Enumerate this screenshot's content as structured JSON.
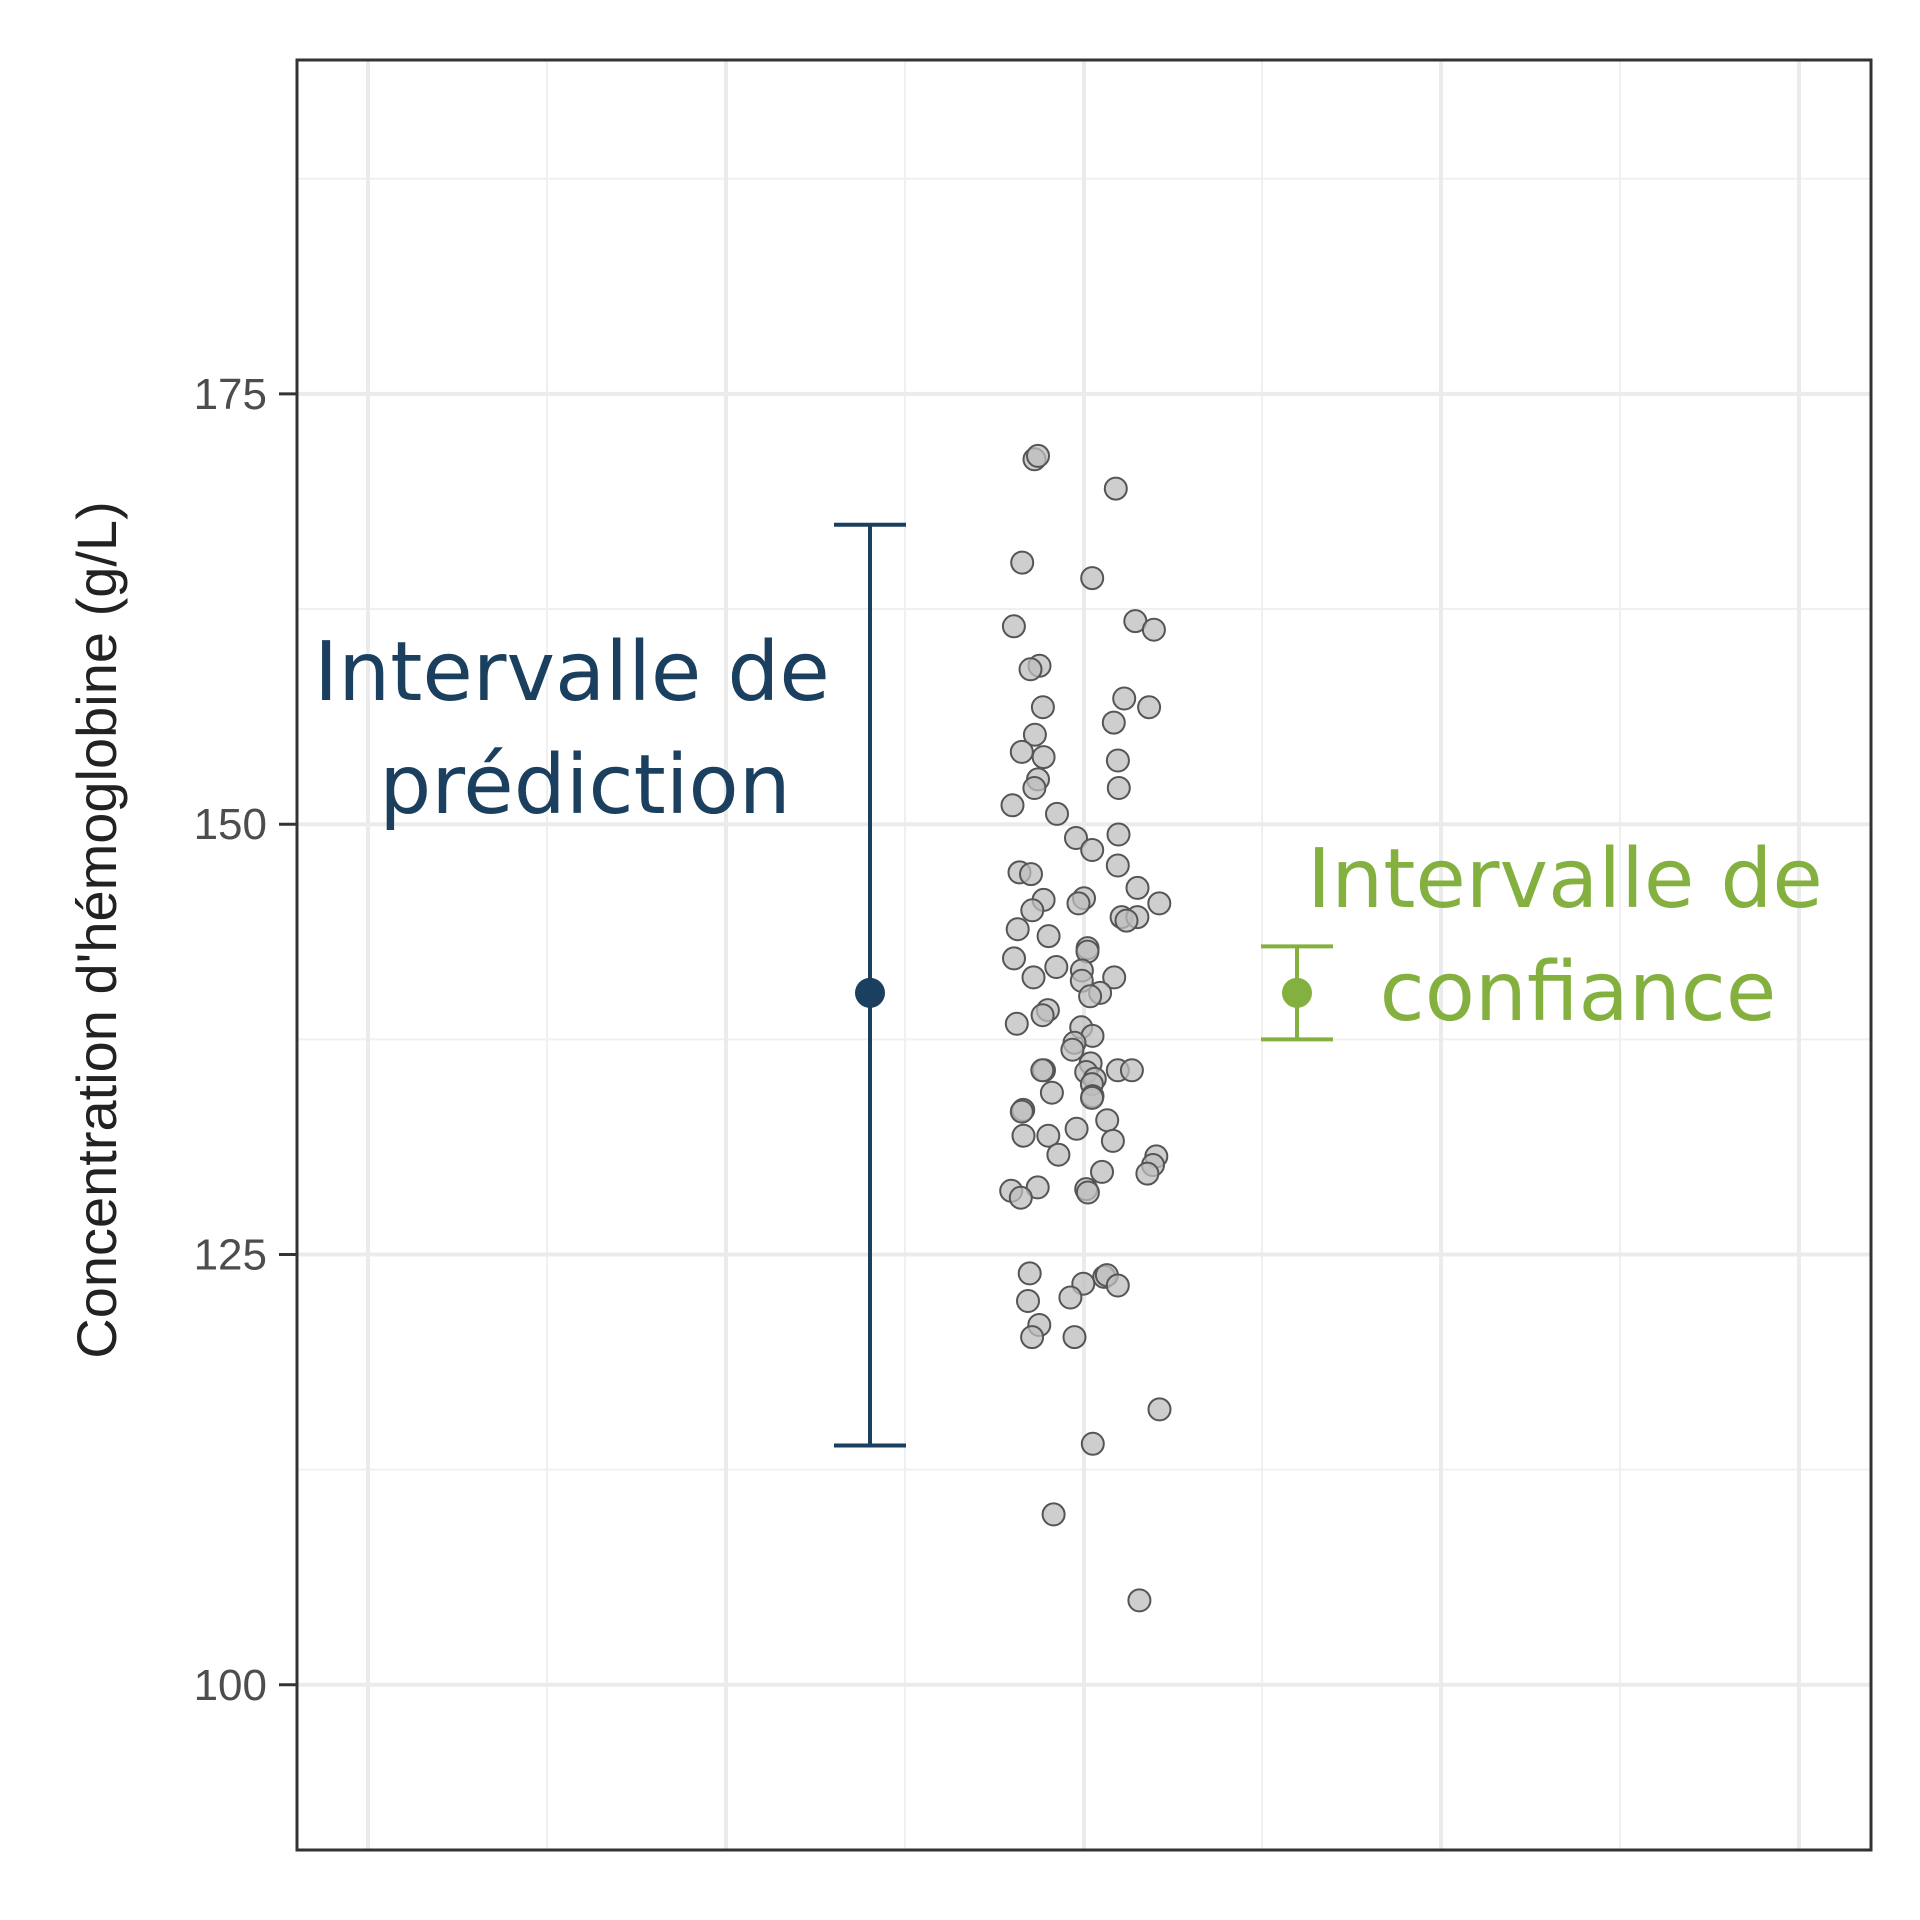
{
  "chart_data": {
    "type": "scatter",
    "ylabel": "Concentration d'hémoglobine (g/L)",
    "ylim": [
      90.4,
      194.4
    ],
    "yticks": [
      100,
      125,
      150,
      175
    ],
    "grid": true,
    "point_color": "#bdbdbd",
    "point_stroke": "#555555",
    "points": [
      {
        "group": "left",
        "y": 171.2
      },
      {
        "group": "left",
        "y": 171.4
      },
      {
        "group": "right",
        "y": 169.5
      },
      {
        "group": "left",
        "y": 165.2
      },
      {
        "group": "mid",
        "y": 164.3
      },
      {
        "group": "right",
        "y": 161.8
      },
      {
        "group": "left",
        "y": 161.5
      },
      {
        "group": "right",
        "y": 161.3
      },
      {
        "group": "left",
        "y": 159.2
      },
      {
        "group": "left",
        "y": 159.0
      },
      {
        "group": "right",
        "y": 157.3
      },
      {
        "group": "right",
        "y": 156.8
      },
      {
        "group": "left",
        "y": 156.8
      },
      {
        "group": "right",
        "y": 155.9
      },
      {
        "group": "left",
        "y": 155.2
      },
      {
        "group": "left",
        "y": 154.2
      },
      {
        "group": "left",
        "y": 153.9
      },
      {
        "group": "right",
        "y": 153.7
      },
      {
        "group": "left",
        "y": 152.6
      },
      {
        "group": "left",
        "y": 152.1
      },
      {
        "group": "right",
        "y": 152.1
      },
      {
        "group": "left",
        "y": 151.1
      },
      {
        "group": "left",
        "y": 150.6
      },
      {
        "group": "mid",
        "y": 149.4
      },
      {
        "group": "mid",
        "y": 149.2
      },
      {
        "group": "mid",
        "y": 148.5
      },
      {
        "group": "mid",
        "y": 147.6
      },
      {
        "group": "left",
        "y": 147.2
      },
      {
        "group": "left",
        "y": 147.1
      },
      {
        "group": "right",
        "y": 146.3
      },
      {
        "group": "left",
        "y": 145.6
      },
      {
        "group": "mid",
        "y": 145.7
      },
      {
        "group": "mid",
        "y": 145.4
      },
      {
        "group": "right",
        "y": 145.4
      },
      {
        "group": "left",
        "y": 145.0
      },
      {
        "group": "right",
        "y": 144.6
      },
      {
        "group": "right",
        "y": 144.6
      },
      {
        "group": "right",
        "y": 144.4
      },
      {
        "group": "left",
        "y": 143.9
      },
      {
        "group": "left",
        "y": 143.5
      },
      {
        "group": "mid",
        "y": 142.8
      },
      {
        "group": "mid",
        "y": 142.6
      },
      {
        "group": "left",
        "y": 142.2
      },
      {
        "group": "left",
        "y": 141.7
      },
      {
        "group": "mid",
        "y": 141.5
      },
      {
        "group": "mid",
        "y": 141.1
      },
      {
        "group": "left",
        "y": 141.1
      },
      {
        "group": "mid",
        "y": 140.9
      },
      {
        "group": "mid",
        "y": 140.2
      },
      {
        "group": "mid",
        "y": 140.0
      },
      {
        "group": "left",
        "y": 139.2
      },
      {
        "group": "left",
        "y": 138.9
      },
      {
        "group": "left",
        "y": 138.4
      },
      {
        "group": "mid",
        "y": 138.2
      },
      {
        "group": "mid",
        "y": 137.7
      },
      {
        "group": "mid",
        "y": 137.3
      },
      {
        "group": "mid",
        "y": 136.9
      },
      {
        "group": "mid",
        "y": 136.1
      },
      {
        "group": "left",
        "y": 135.7
      },
      {
        "group": "left",
        "y": 135.7
      },
      {
        "group": "mid",
        "y": 135.7
      },
      {
        "group": "mid",
        "y": 135.6
      },
      {
        "group": "right",
        "y": 135.7
      },
      {
        "group": "mid",
        "y": 135.2
      },
      {
        "group": "mid",
        "y": 134.9
      },
      {
        "group": "left",
        "y": 134.4
      },
      {
        "group": "mid",
        "y": 134.2
      },
      {
        "group": "mid",
        "y": 134.1
      },
      {
        "group": "left",
        "y": 133.4
      },
      {
        "group": "left",
        "y": 133.3
      },
      {
        "group": "mid",
        "y": 132.8
      },
      {
        "group": "mid",
        "y": 132.3
      },
      {
        "group": "left",
        "y": 131.9
      },
      {
        "group": "left",
        "y": 131.9
      },
      {
        "group": "mid",
        "y": 131.6
      },
      {
        "group": "left",
        "y": 130.8
      },
      {
        "group": "right",
        "y": 130.7
      },
      {
        "group": "right",
        "y": 130.2
      },
      {
        "group": "right",
        "y": 129.7
      },
      {
        "group": "mid",
        "y": 129.8
      },
      {
        "group": "left",
        "y": 128.9
      },
      {
        "group": "left",
        "y": 128.7
      },
      {
        "group": "mid",
        "y": 128.8
      },
      {
        "group": "mid",
        "y": 128.6
      },
      {
        "group": "left",
        "y": 128.3
      },
      {
        "group": "left",
        "y": 123.9
      },
      {
        "group": "mid",
        "y": 123.7
      },
      {
        "group": "mid",
        "y": 123.8
      },
      {
        "group": "mid",
        "y": 123.3
      },
      {
        "group": "mid",
        "y": 123.2
      },
      {
        "group": "mid",
        "y": 122.5
      },
      {
        "group": "left",
        "y": 122.3
      },
      {
        "group": "left",
        "y": 120.9
      },
      {
        "group": "left",
        "y": 120.2
      },
      {
        "group": "mid",
        "y": 120.2
      },
      {
        "group": "right",
        "y": 116.0
      },
      {
        "group": "mid",
        "y": 114.0
      },
      {
        "group": "left",
        "y": 109.9
      },
      {
        "group": "right",
        "y": 104.9
      }
    ],
    "series": [
      {
        "name": "Intervalle de prédiction",
        "center": 140.2,
        "low": 113.9,
        "high": 167.4,
        "color": "#1b3f5e"
      },
      {
        "name": "Intervalle de confiance",
        "center": 140.2,
        "low": 137.5,
        "high": 142.9,
        "color": "#84b040"
      }
    ],
    "annotations": {
      "prediction": [
        "Intervalle de",
        "prédiction"
      ],
      "confidence": [
        "Intervalle de",
        "confiance"
      ]
    }
  }
}
